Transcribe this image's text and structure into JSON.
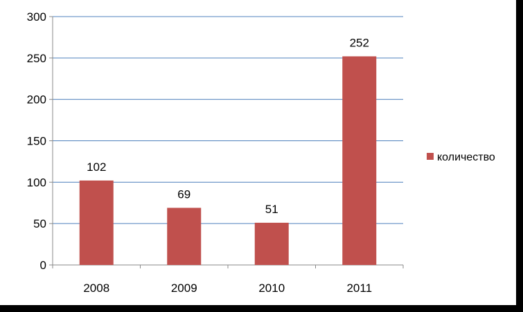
{
  "chart_data": {
    "type": "bar",
    "categories": [
      "2008",
      "2009",
      "2010",
      "2011"
    ],
    "series": [
      {
        "name": "количество",
        "values": [
          102,
          69,
          51,
          252
        ],
        "color": "#C0504D"
      }
    ],
    "ylim": [
      0,
      300
    ],
    "yticks": [
      0,
      50,
      100,
      150,
      200,
      250,
      300
    ],
    "ytick_labels": [
      "0",
      "50",
      "100",
      "150",
      "200",
      "250",
      "300"
    ],
    "data_labels": [
      "102",
      "69",
      "51",
      "252"
    ],
    "gridlines": true,
    "gridline_color": "#4F81BD",
    "legend": {
      "position": "right",
      "label": "количество"
    }
  }
}
